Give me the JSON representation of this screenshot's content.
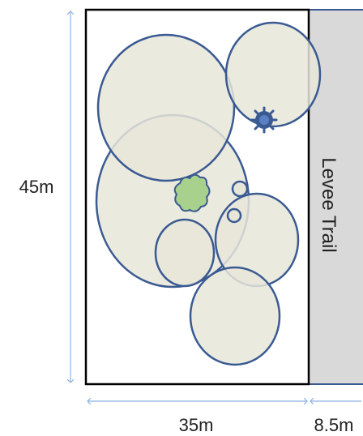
{
  "dimensions": {
    "height_label": "45m",
    "width_label": "35m",
    "trail_width_label": "8.5m"
  },
  "trail": {
    "label": "Levee Trail"
  },
  "colors": {
    "canopy_fill": "#e8e6d9",
    "canopy_stroke": "#3a5a92",
    "trail_fill": "#d9d9d9",
    "dimension_arrow": "#8db3e2",
    "shrub_green": "#a9d18e",
    "flower_blue": "#5b7fc4",
    "boundary": "#000000"
  }
}
